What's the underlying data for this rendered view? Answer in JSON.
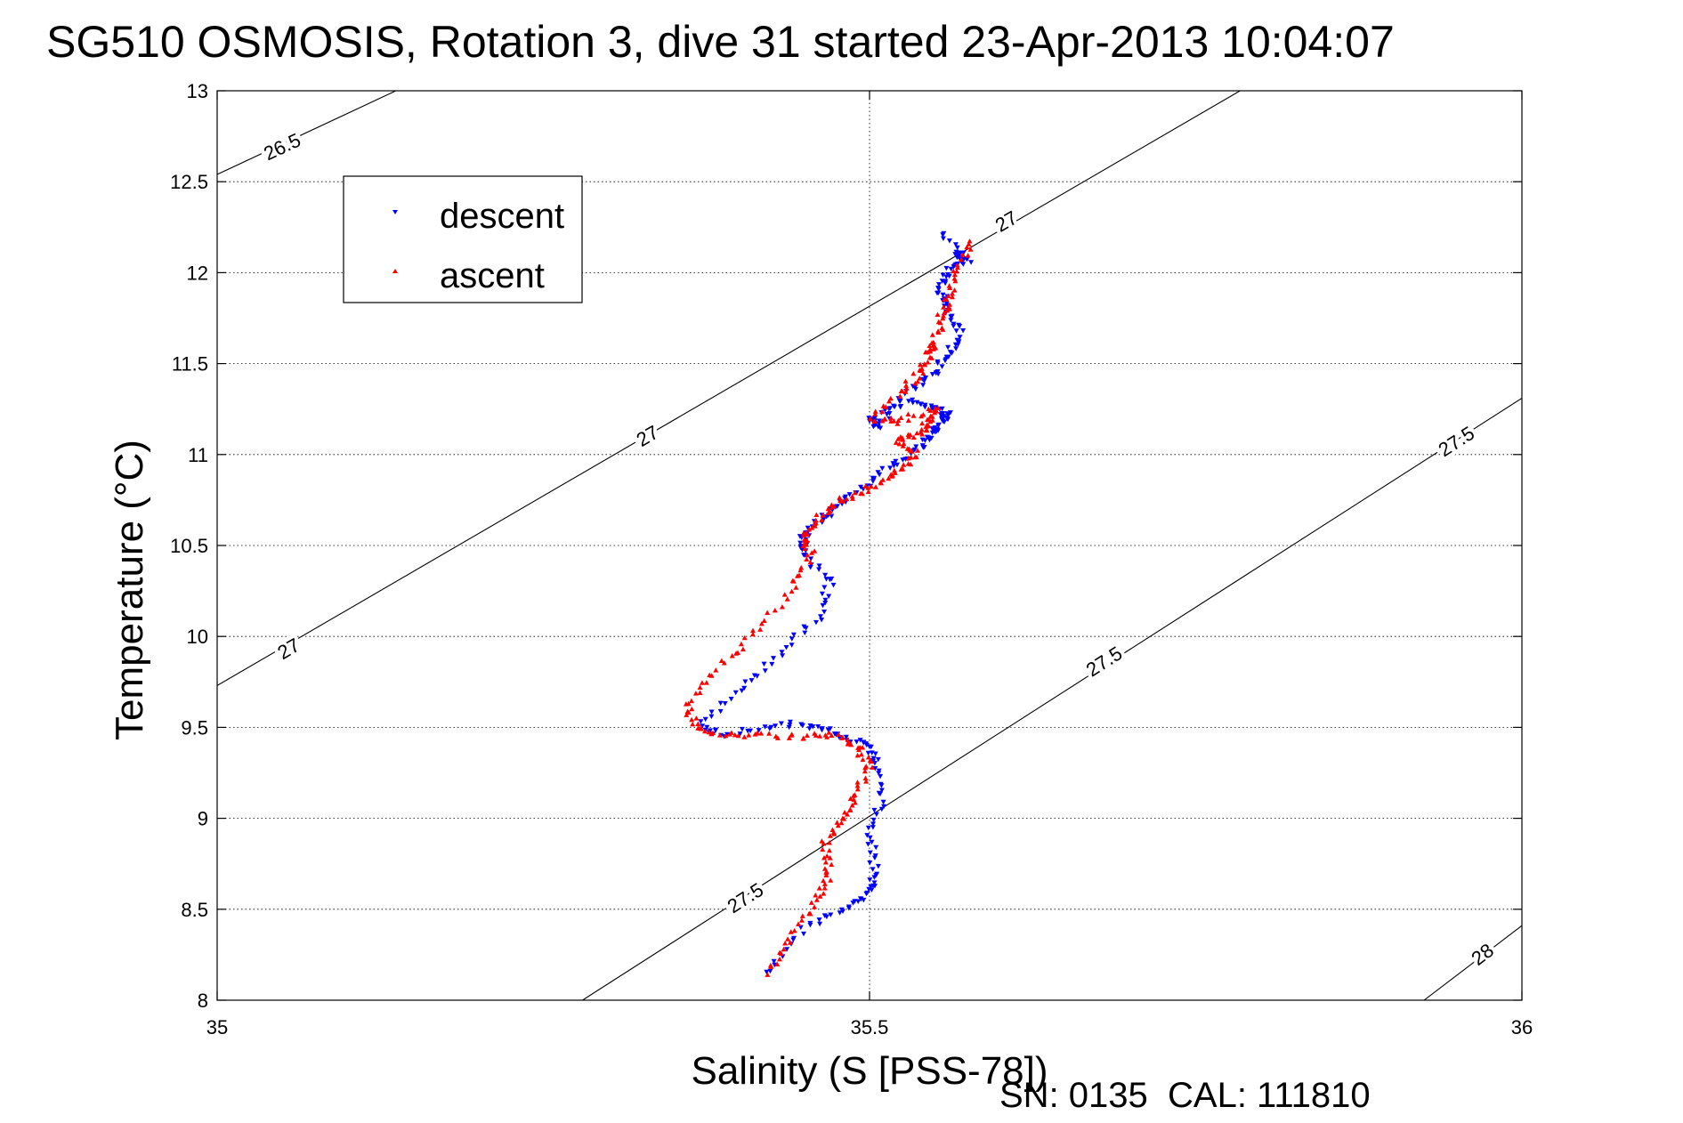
{
  "chart_data": {
    "type": "scatter",
    "title": "SG510 OSMOSIS, Rotation 3, dive 31 started 23-Apr-2013 10:04:07",
    "xlabel": "Salinity (S [PSS-78])",
    "ylabel": "Temperature (°C)",
    "xlim": [
      35,
      36
    ],
    "ylim": [
      8,
      13
    ],
    "x_ticks": [
      35,
      35.5,
      36
    ],
    "x_tick_labels": [
      "35",
      "35.5",
      "36"
    ],
    "y_ticks": [
      8,
      8.5,
      9,
      9.5,
      10,
      10.5,
      11,
      11.5,
      12,
      12.5,
      13
    ],
    "y_tick_labels": [
      "8",
      "8.5",
      "9",
      "9.5",
      "10",
      "10.5",
      "11",
      "11.5",
      "12",
      "12.5",
      "13"
    ],
    "grid": true,
    "legend_position": "top-left",
    "footer": "SN: 0135  CAL: 111810",
    "isopycnals": [
      {
        "label": "26.5",
        "x": [
          35.0,
          35.137
        ],
        "y": [
          12.54,
          13.0
        ],
        "label_points": [
          [
            35.05,
            12.69
          ]
        ]
      },
      {
        "label": "27",
        "x": [
          35.0,
          35.784
        ],
        "y": [
          9.73,
          13.0
        ],
        "label_points": [
          [
            35.055,
            9.93
          ],
          [
            35.33,
            11.1
          ],
          [
            35.605,
            12.28
          ]
        ]
      },
      {
        "label": "27.5",
        "x": [
          35.28,
          36.0
        ],
        "y": [
          8.0,
          11.31
        ],
        "label_points": [
          [
            35.405,
            8.56
          ],
          [
            35.68,
            9.86
          ],
          [
            35.95,
            11.07
          ]
        ]
      },
      {
        "label": "28",
        "x": [
          35.925,
          36.0
        ],
        "y": [
          8.0,
          8.41
        ],
        "label_points": [
          [
            35.97,
            8.25
          ]
        ]
      }
    ],
    "series": [
      {
        "name": "descent",
        "color": "#0000ff",
        "marker": "triangle-down",
        "x": [
          35.42,
          35.45,
          35.48,
          35.5,
          35.505,
          35.5,
          35.51,
          35.505,
          35.5,
          35.48,
          35.46,
          35.43,
          35.39,
          35.37,
          35.4,
          35.43,
          35.46,
          35.47,
          35.45,
          35.45,
          35.465,
          35.48,
          35.5,
          35.52,
          35.54,
          35.55,
          35.555,
          35.56,
          35.55,
          35.53,
          35.5,
          35.505,
          35.53,
          35.55,
          35.56,
          35.57,
          35.56,
          35.555,
          35.56,
          35.57,
          35.575,
          35.555
        ],
        "y": [
          8.15,
          8.4,
          8.5,
          8.58,
          8.7,
          8.9,
          9.1,
          9.3,
          9.4,
          9.45,
          9.5,
          9.52,
          9.46,
          9.5,
          9.7,
          9.9,
          10.1,
          10.3,
          10.45,
          10.55,
          10.65,
          10.75,
          10.85,
          10.95,
          11.05,
          11.12,
          11.18,
          11.22,
          11.25,
          11.3,
          11.2,
          11.15,
          11.35,
          11.45,
          11.55,
          11.68,
          11.8,
          11.9,
          12.0,
          12.1,
          12.05,
          12.22
        ]
      },
      {
        "name": "ascent",
        "color": "#ff0000",
        "marker": "triangle-up",
        "x": [
          35.42,
          35.44,
          35.46,
          35.47,
          35.465,
          35.48,
          35.49,
          35.5,
          35.49,
          35.47,
          35.44,
          35.4,
          35.37,
          35.36,
          35.38,
          35.41,
          35.44,
          35.455,
          35.45,
          35.46,
          35.48,
          35.5,
          35.52,
          35.535,
          35.52,
          35.54,
          35.545,
          35.55,
          35.52,
          35.5,
          35.525,
          35.54,
          35.545,
          35.55,
          35.555,
          35.56,
          35.565,
          35.58
        ],
        "y": [
          8.15,
          8.35,
          8.55,
          8.7,
          8.85,
          9.0,
          9.12,
          9.3,
          9.4,
          9.46,
          9.45,
          9.46,
          9.48,
          9.6,
          9.8,
          10.0,
          10.25,
          10.45,
          10.55,
          10.65,
          10.75,
          10.82,
          10.9,
          11.0,
          11.08,
          11.12,
          11.2,
          11.25,
          11.18,
          11.2,
          11.35,
          11.45,
          11.55,
          11.6,
          11.75,
          11.85,
          12.0,
          12.18
        ]
      }
    ]
  }
}
